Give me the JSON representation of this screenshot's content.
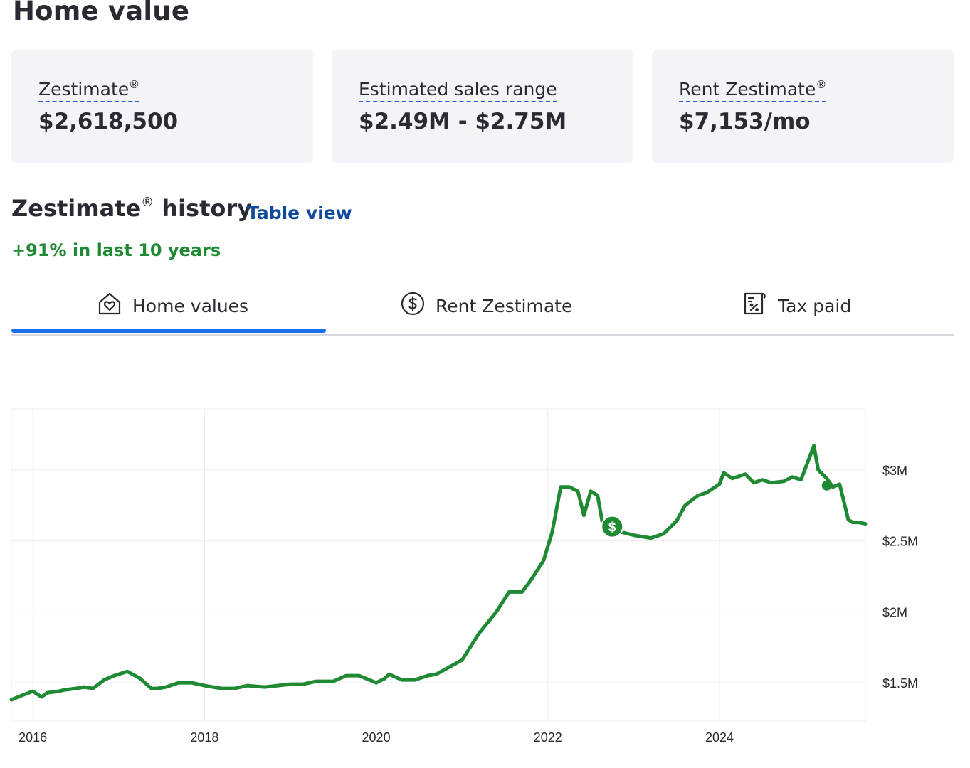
{
  "page": {
    "title": "Home value"
  },
  "cards": [
    {
      "label": "Zestimate",
      "reg": "®",
      "value": "$2,618,500"
    },
    {
      "label": "Estimated sales range",
      "reg": "",
      "value": "$2.49M - $2.75M"
    },
    {
      "label": "Rent Zestimate",
      "reg": "®",
      "value": "$7,153/mo"
    }
  ],
  "history": {
    "title_a": "Zestimate",
    "reg": "®",
    "title_b": " history",
    "table_view": "Table view",
    "change": "+91% in last 10 years"
  },
  "tabs": [
    {
      "label": "Home values",
      "icon": "home-heart-icon",
      "active": true
    },
    {
      "label": "Rent Zestimate",
      "icon": "dollar-circle-icon",
      "active": false
    },
    {
      "label": "Tax paid",
      "icon": "tax-document-icon",
      "active": false
    }
  ],
  "colors": {
    "line": "#1f8a33",
    "active_tab": "#1a6ee8",
    "link": "#0f4a9e",
    "card_bg": "#f4f4f8"
  },
  "chart_data": {
    "type": "line",
    "x_ticks": [
      "2016",
      "2018",
      "2020",
      "2022",
      "2024"
    ],
    "y_ticks": [
      "$1.5M",
      "$2M",
      "$2.5M",
      "$3M"
    ],
    "y_tick_values": [
      1.5,
      2.0,
      2.5,
      3.0
    ],
    "xlim": [
      2015.75,
      2025.7
    ],
    "ylim": [
      1.23,
      3.43
    ],
    "grid": true,
    "y_axis_position": "right",
    "series": [
      {
        "units": "$M",
        "x": [
          2015.75,
          2015.87,
          2016.0,
          2016.1,
          2016.17,
          2016.3,
          2016.37,
          2016.5,
          2016.6,
          2016.7,
          2016.83,
          2016.95,
          2017.1,
          2017.25,
          2017.38,
          2017.45,
          2017.55,
          2017.7,
          2017.85,
          2018.0,
          2018.1,
          2018.2,
          2018.35,
          2018.5,
          2018.7,
          2018.85,
          2019.0,
          2019.15,
          2019.3,
          2019.5,
          2019.65,
          2019.8,
          2020.0,
          2020.1,
          2020.15,
          2020.3,
          2020.45,
          2020.6,
          2020.7,
          2020.85,
          2021.0,
          2021.2,
          2021.4,
          2021.55,
          2021.7,
          2021.8,
          2021.95,
          2022.05,
          2022.15,
          2022.25,
          2022.35,
          2022.42,
          2022.5,
          2022.58,
          2022.65,
          2022.72,
          2022.8,
          2023.0,
          2023.2,
          2023.35,
          2023.5,
          2023.6,
          2023.75,
          2023.85,
          2024.0,
          2024.05,
          2024.15,
          2024.3,
          2024.4,
          2024.5,
          2024.6,
          2024.75,
          2024.85,
          2024.95,
          2025.1,
          2025.15,
          2025.25,
          2025.32,
          2025.4,
          2025.5,
          2025.55,
          2025.62,
          2025.7
        ],
        "values": [
          1.38,
          1.41,
          1.44,
          1.4,
          1.43,
          1.44,
          1.45,
          1.46,
          1.47,
          1.46,
          1.52,
          1.55,
          1.58,
          1.53,
          1.46,
          1.46,
          1.47,
          1.5,
          1.5,
          1.48,
          1.47,
          1.46,
          1.46,
          1.48,
          1.47,
          1.48,
          1.49,
          1.49,
          1.51,
          1.51,
          1.55,
          1.55,
          1.5,
          1.53,
          1.56,
          1.52,
          1.52,
          1.55,
          1.56,
          1.61,
          1.66,
          1.85,
          2.0,
          2.14,
          2.14,
          2.22,
          2.36,
          2.56,
          2.88,
          2.88,
          2.85,
          2.68,
          2.85,
          2.82,
          2.58,
          2.56,
          2.57,
          2.54,
          2.52,
          2.55,
          2.64,
          2.75,
          2.82,
          2.84,
          2.9,
          2.98,
          2.94,
          2.97,
          2.91,
          2.93,
          2.91,
          2.92,
          2.95,
          2.93,
          3.17,
          3.0,
          2.94,
          2.88,
          2.9,
          2.65,
          2.63,
          2.63,
          2.62
        ]
      }
    ],
    "markers": [
      {
        "x": 2022.75,
        "y": 2.6,
        "type": "sold-dollar-icon"
      },
      {
        "x": 2025.25,
        "y": 2.89,
        "type": "point"
      }
    ]
  }
}
